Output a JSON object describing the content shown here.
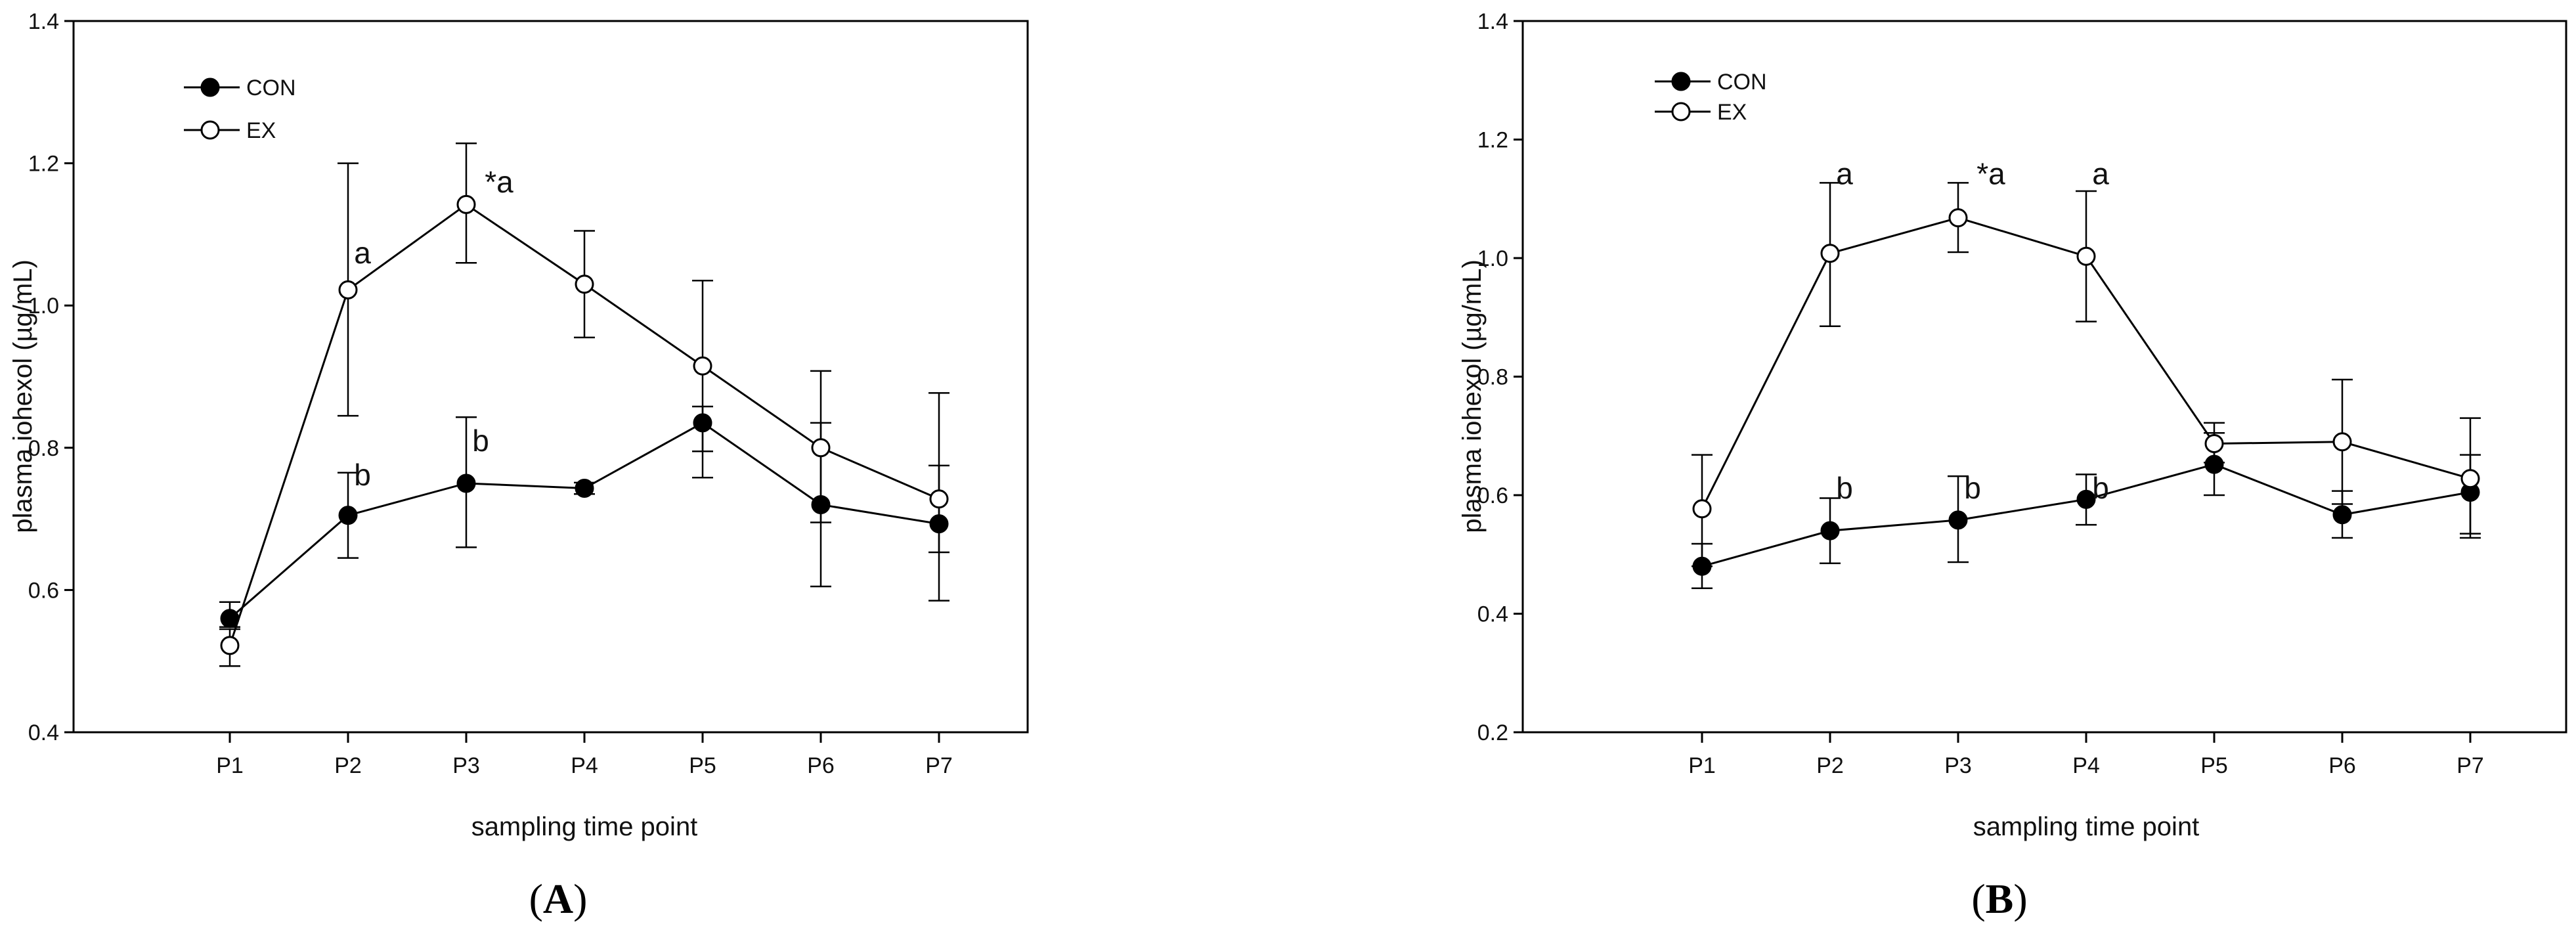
{
  "chart_data": [
    {
      "type": "line",
      "panel_label": "A",
      "categories": [
        "P1",
        "P2",
        "P3",
        "P4",
        "P5",
        "P6",
        "P7"
      ],
      "xlabel": "sampling time point",
      "ylabel": "plasma iohexol (µg/mL)",
      "ylim": [
        0.4,
        1.4
      ],
      "yticks": [
        "0.4",
        "0.6",
        "0.8",
        "1.0",
        "1.2",
        "1.4"
      ],
      "legend_position": "top-left",
      "series": [
        {
          "name": "CON",
          "marker": "filled-circle",
          "values": [
            0.56,
            0.705,
            0.75,
            0.743,
            0.835,
            0.72,
            0.693
          ],
          "err_low": [
            0.548,
            0.645,
            0.66,
            0.735,
            0.758,
            0.605,
            0.585
          ],
          "err_high": [
            0.583,
            0.765,
            0.843,
            0.751,
            0.858,
            0.835,
            0.775
          ]
        },
        {
          "name": "EX",
          "marker": "open-circle",
          "values": [
            0.522,
            1.022,
            1.142,
            1.03,
            0.915,
            0.8,
            0.728
          ],
          "err_low": [
            0.493,
            0.845,
            1.06,
            0.955,
            0.795,
            0.695,
            0.653
          ],
          "err_high": [
            0.545,
            1.2,
            1.228,
            1.105,
            1.035,
            0.908,
            0.877
          ]
        }
      ],
      "annotations": [
        {
          "text": "a",
          "category": "P2",
          "y": 1.072
        },
        {
          "text": "*a",
          "category": "P3",
          "y": 1.172
        },
        {
          "text": "b",
          "category": "P2",
          "y": 0.76
        },
        {
          "text": "b",
          "category": "P3",
          "y": 0.808
        }
      ]
    },
    {
      "type": "line",
      "panel_label": "B",
      "categories": [
        "P1",
        "P2",
        "P3",
        "P4",
        "P5",
        "P6",
        "P7"
      ],
      "xlabel": "sampling time point",
      "ylabel": "plasma iohexol (µg/mL)",
      "ylim": [
        0.2,
        1.4
      ],
      "yticks": [
        "0.2",
        "0.4",
        "0.6",
        "0.8",
        "1.0",
        "1.2",
        "1.4"
      ],
      "legend_position": "top-left",
      "series": [
        {
          "name": "CON",
          "marker": "filled-circle",
          "values": [
            0.48,
            0.54,
            0.558,
            0.593,
            0.652,
            0.567,
            0.605
          ],
          "err_low": [
            0.443,
            0.485,
            0.487,
            0.55,
            0.6,
            0.528,
            0.535
          ],
          "err_high": [
            0.518,
            0.595,
            0.632,
            0.635,
            0.705,
            0.607,
            0.668
          ]
        },
        {
          "name": "EX",
          "marker": "open-circle",
          "values": [
            0.577,
            1.008,
            1.068,
            1.003,
            0.687,
            0.69,
            0.628
          ],
          "err_low": [
            0.48,
            0.885,
            1.01,
            0.893,
            0.655,
            0.585,
            0.528
          ],
          "err_high": [
            0.668,
            1.127,
            1.127,
            1.113,
            0.722,
            0.795,
            0.73
          ]
        }
      ],
      "annotations": [
        {
          "text": "a",
          "category": "P2",
          "y": 1.14
        },
        {
          "text": "*a",
          "category": "P3",
          "y": 1.14
        },
        {
          "text": "a",
          "category": "P4",
          "y": 1.14
        },
        {
          "text": "b",
          "category": "P2",
          "y": 0.61
        },
        {
          "text": "b",
          "category": "P3",
          "y": 0.61
        },
        {
          "text": "b",
          "category": "P4",
          "y": 0.61
        }
      ]
    }
  ]
}
